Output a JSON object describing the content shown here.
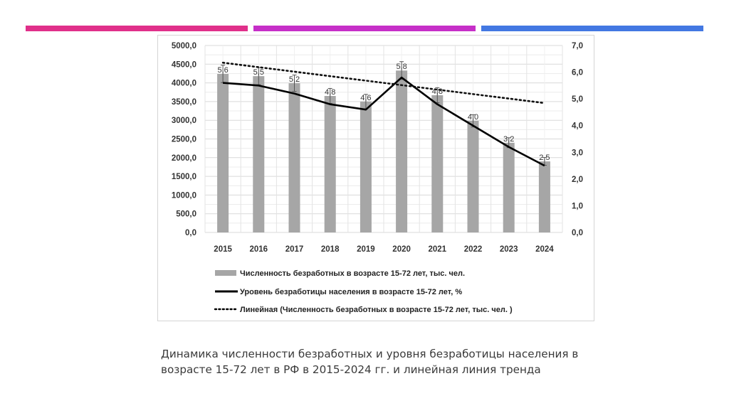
{
  "decor": {
    "stripes": [
      {
        "name": "pink",
        "color": "#e0308a"
      },
      {
        "name": "magenta",
        "color": "#c62fc8"
      },
      {
        "name": "blue",
        "color": "#4378e2"
      }
    ]
  },
  "caption": {
    "line1": "Динамика численности безработных и уровня безработицы населения в",
    "line2": "возрасте 15-72 лет в РФ в 2015-2024 гг. и линейная линия тренда"
  },
  "chart_data": {
    "type": "bar",
    "title": "",
    "xlabel": "",
    "ylabel": "",
    "categories": [
      "2015",
      "2016",
      "2017",
      "2018",
      "2019",
      "2020",
      "2021",
      "2022",
      "2023",
      "2024"
    ],
    "grid": true,
    "legend_position": "bottom",
    "left_axis": {
      "range": [
        0,
        5000
      ],
      "ticks": [
        "0,0",
        "500,0",
        "1000,0",
        "1500,0",
        "2000,0",
        "2500,0",
        "3000,0",
        "3500,0",
        "4000,0",
        "4500,0",
        "5000,0"
      ]
    },
    "right_axis": {
      "range": [
        0,
        7
      ],
      "ticks": [
        "0,0",
        "1,0",
        "2,0",
        "3,0",
        "4,0",
        "5,0",
        "6,0",
        "7,0"
      ]
    },
    "series": [
      {
        "name": "Численность безработных в возрасте 15-72 лет, тыс. чел.",
        "type": "bar",
        "axis": "left",
        "color": "#a6a6a6",
        "values": [
          4240,
          4180,
          3990,
          3650,
          3500,
          4330,
          3670,
          2985,
          2400,
          1900
        ],
        "error_bars": true
      },
      {
        "name": "Уровень безработицы населения в возрасте 15-72 лет, %",
        "type": "line",
        "axis": "right",
        "color": "#000000",
        "values": [
          5.6,
          5.5,
          5.2,
          4.8,
          4.6,
          5.8,
          4.8,
          4.0,
          3.2,
          2.5
        ],
        "labels": [
          "5,6",
          "5,5",
          "5,2",
          "4,8",
          "4,6",
          "5,8",
          "4,8",
          "4,0",
          "3,2",
          "2,5"
        ]
      },
      {
        "name": "Линейная (Численность безработных в возрасте 15-72 лет, тыс. чел. )",
        "type": "trendline",
        "axis": "left",
        "color": "#000000",
        "style": "dotted",
        "values": [
          4540,
          4420,
          4300,
          4180,
          4060,
          3940,
          3820,
          3700,
          3580,
          3460
        ]
      }
    ]
  }
}
